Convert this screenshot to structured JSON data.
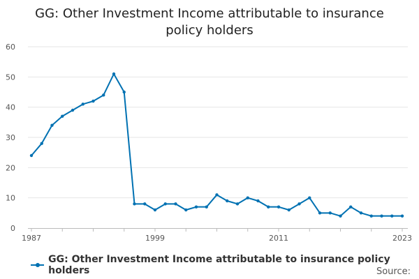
{
  "chart_data": {
    "type": "line",
    "title": "GG: Other Investment Income attributable to insurance policy holders",
    "title_lines": [
      "GG: Other Investment Income attributable to insurance",
      "policy holders"
    ],
    "xlabel": "",
    "ylabel": "",
    "x_tick_labels": [
      "1987",
      "1999",
      "2011",
      "2023"
    ],
    "y_ticks": [
      0,
      10,
      20,
      30,
      40,
      50,
      60
    ],
    "ylim": [
      0,
      60
    ],
    "xlim": [
      1987,
      2023
    ],
    "grid": true,
    "legend_position": "bottom",
    "series": [
      {
        "name": "GG: Other Investment Income attributable to insurance policy holders",
        "color": "#0071b2",
        "x": [
          1987,
          1988,
          1989,
          1990,
          1991,
          1992,
          1993,
          1994,
          1995,
          1996,
          1997,
          1998,
          1999,
          2000,
          2001,
          2002,
          2003,
          2004,
          2005,
          2006,
          2007,
          2008,
          2009,
          2010,
          2011,
          2012,
          2013,
          2014,
          2015,
          2016,
          2017,
          2018,
          2019,
          2020,
          2021,
          2022,
          2023
        ],
        "values": [
          24,
          28,
          34,
          37,
          39,
          41,
          42,
          44,
          51,
          45,
          8,
          8,
          6,
          8,
          8,
          6,
          7,
          7,
          11,
          9,
          8,
          10,
          9,
          7,
          7,
          6,
          8,
          10,
          5,
          5,
          4,
          7,
          5,
          4,
          4,
          4,
          4
        ]
      }
    ]
  },
  "source_label": "Source:"
}
